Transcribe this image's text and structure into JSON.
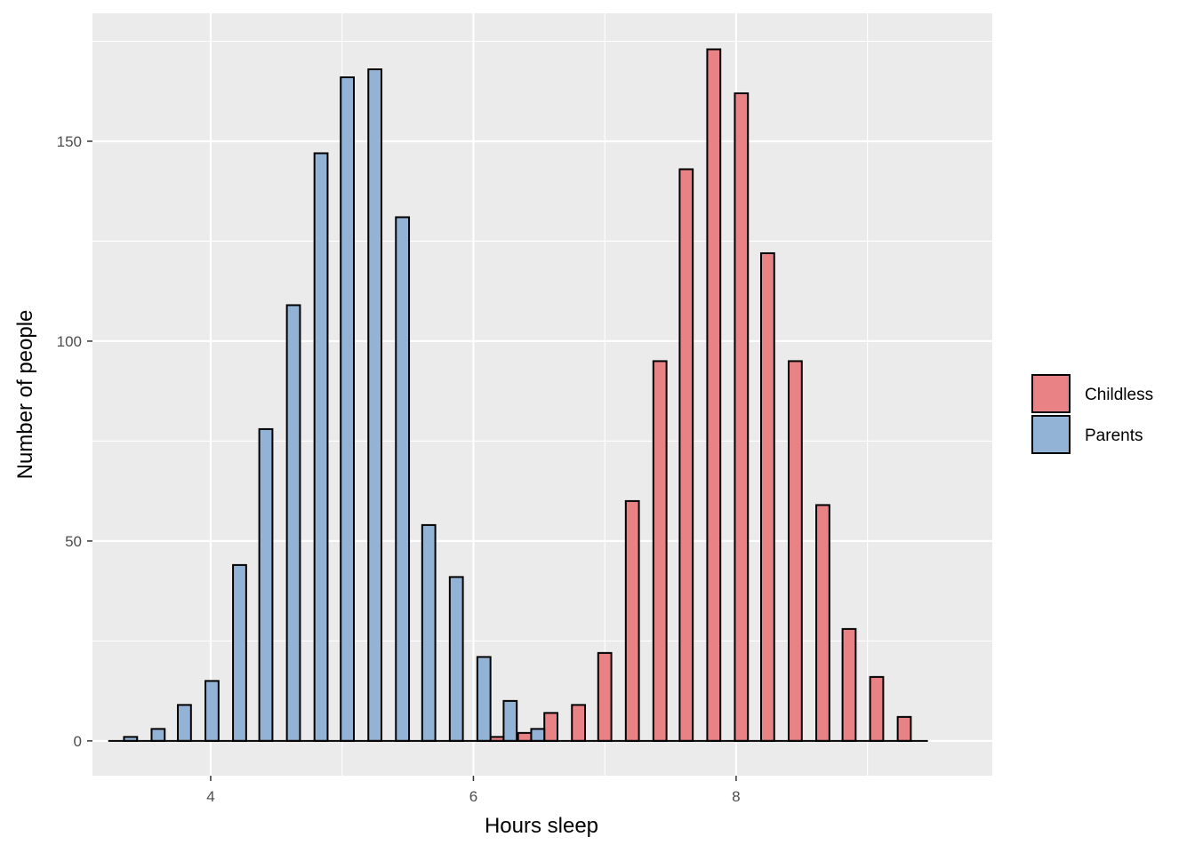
{
  "chart_data": {
    "type": "bar",
    "xlabel": "Hours sleep",
    "ylabel": "Number of people",
    "xlim": [
      3.1,
      9.95
    ],
    "ylim": [
      -8.7,
      182
    ],
    "x_ticks": [
      4,
      6,
      8
    ],
    "y_ticks": [
      0,
      50,
      100,
      150
    ],
    "grid": true,
    "legend_position": "right",
    "bin_width": 0.1,
    "series": [
      {
        "name": "Childless",
        "color": "#e88284",
        "points": [
          {
            "x": 6.18,
            "y": 1
          },
          {
            "x": 6.39,
            "y": 2
          },
          {
            "x": 6.59,
            "y": 7
          },
          {
            "x": 6.8,
            "y": 9
          },
          {
            "x": 7.0,
            "y": 22
          },
          {
            "x": 7.21,
            "y": 60
          },
          {
            "x": 7.42,
            "y": 95
          },
          {
            "x": 7.62,
            "y": 143
          },
          {
            "x": 7.83,
            "y": 173
          },
          {
            "x": 8.04,
            "y": 162
          },
          {
            "x": 8.24,
            "y": 122
          },
          {
            "x": 8.45,
            "y": 95
          },
          {
            "x": 8.66,
            "y": 59
          },
          {
            "x": 8.86,
            "y": 28
          },
          {
            "x": 9.07,
            "y": 16
          },
          {
            "x": 9.28,
            "y": 6
          }
        ]
      },
      {
        "name": "Parents",
        "color": "#92b3d6",
        "points": [
          {
            "x": 3.39,
            "y": 1
          },
          {
            "x": 3.6,
            "y": 3
          },
          {
            "x": 3.8,
            "y": 9
          },
          {
            "x": 4.01,
            "y": 15
          },
          {
            "x": 4.22,
            "y": 44
          },
          {
            "x": 4.42,
            "y": 78
          },
          {
            "x": 4.63,
            "y": 109
          },
          {
            "x": 4.84,
            "y": 147
          },
          {
            "x": 5.04,
            "y": 166
          },
          {
            "x": 5.25,
            "y": 168
          },
          {
            "x": 5.46,
            "y": 131
          },
          {
            "x": 5.66,
            "y": 54
          },
          {
            "x": 5.87,
            "y": 41
          },
          {
            "x": 6.08,
            "y": 21
          },
          {
            "x": 6.28,
            "y": 10
          },
          {
            "x": 6.49,
            "y": 3
          }
        ]
      }
    ]
  }
}
